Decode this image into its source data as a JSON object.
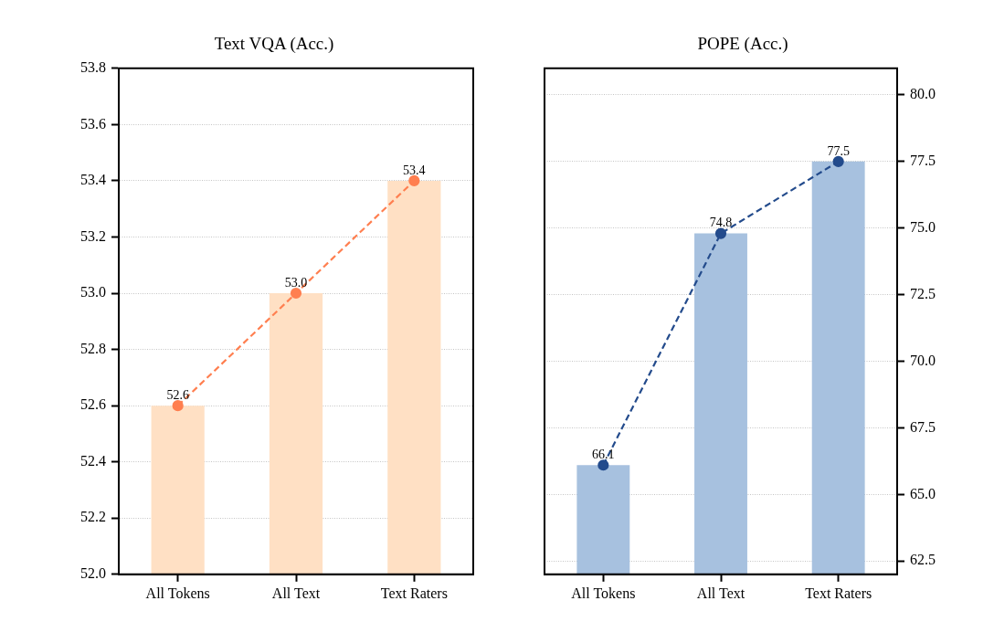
{
  "chart_data": [
    {
      "type": "bar",
      "title": "Text VQA (Acc.)",
      "categories": [
        "All Tokens",
        "All Text",
        "Text Raters"
      ],
      "series": [
        {
          "color": "#ffe0c4",
          "values": [
            52.6,
            53.0,
            53.4
          ]
        },
        {
          "type": "line",
          "color": "#ff7f50",
          "values": [
            52.6,
            53.0,
            53.4
          ],
          "value_labels": [
            "52.6",
            "53.0",
            "53.4"
          ]
        }
      ],
      "ylim": [
        52.0,
        53.8
      ],
      "yticks": [
        {
          "value": 52,
          "label": "52.0"
        },
        52.2,
        52.4,
        52.6,
        52.8,
        {
          "value": 53,
          "label": "53.0"
        },
        53.2,
        53.4,
        53.6,
        53.8
      ],
      "grid": "y",
      "legend": false,
      "marker": "circle",
      "line_style": "dashed"
    },
    {
      "type": "bar",
      "title": "POPE (Acc.)",
      "categories": [
        "All Tokens",
        "All Text",
        "Text Raters"
      ],
      "series": [
        {
          "axis": "y2",
          "color": "#a7c1df",
          "values": [
            66.1,
            74.8,
            77.5
          ]
        },
        {
          "type": "line",
          "axis": "y2",
          "color": "#234b8c",
          "values": [
            66.1,
            74.8,
            77.5
          ],
          "value_labels": [
            "66.1",
            "74.8",
            "77.5"
          ]
        }
      ],
      "y2lim": [
        62,
        81
      ],
      "y2ticks": [
        62.5,
        {
          "value": 65,
          "label": "65.0"
        },
        67.5,
        {
          "value": 70,
          "label": "70.0"
        },
        72.5,
        {
          "value": 75,
          "label": "75.0"
        },
        77.5,
        {
          "value": 80,
          "label": "80.0"
        }
      ],
      "grid": "y",
      "legend": false,
      "marker": "circle",
      "line_style": "dashed"
    }
  ]
}
